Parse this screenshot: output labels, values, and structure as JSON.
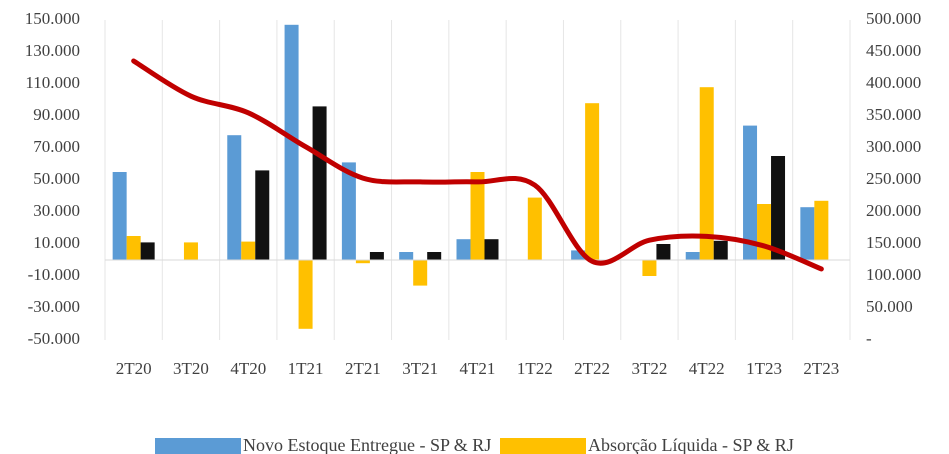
{
  "chart_data": {
    "type": "bar-line",
    "categories": [
      "2T20",
      "3T20",
      "4T20",
      "1T21",
      "2T21",
      "3T21",
      "4T21",
      "1T22",
      "2T22",
      "3T22",
      "4T22",
      "1T23",
      "2T23"
    ],
    "series": [
      {
        "name": "Novo Estoque Entregue - SP & RJ",
        "color": "#5b9bd5",
        "type": "bar",
        "values": [
          55000,
          null,
          78000,
          147000,
          61000,
          5000,
          13000,
          null,
          6000,
          null,
          5000,
          84000,
          33000
        ]
      },
      {
        "name": "Absorção Líquida - SP & RJ",
        "color": "#ffc000",
        "type": "bar",
        "values": [
          15000,
          11000,
          11500,
          -43000,
          -2000,
          -16000,
          55000,
          39000,
          98000,
          -10000,
          108000,
          35000,
          37000
        ]
      },
      {
        "color": "#111111",
        "type": "bar",
        "values": [
          11000,
          null,
          56000,
          96000,
          5000,
          5000,
          13000,
          null,
          null,
          10000,
          12000,
          65000,
          null
        ]
      },
      {
        "color": "#c00000",
        "type": "line",
        "axis": "y2",
        "values": [
          436000,
          381000,
          355000,
          302000,
          253000,
          247000,
          247000,
          242000,
          123000,
          156000,
          162000,
          147000,
          111000
        ]
      }
    ],
    "ylim": [
      -50000,
      150000
    ],
    "yticks": [
      {
        "value": -50000,
        "label": "-50.000"
      },
      {
        "value": -30000,
        "label": "-30.000"
      },
      {
        "value": -10000,
        "label": "-10.000"
      },
      {
        "value": 10000,
        "label": "10.000"
      },
      {
        "value": 30000,
        "label": "30.000"
      },
      {
        "value": 50000,
        "label": "50.000"
      },
      {
        "value": 70000,
        "label": "70.000"
      },
      {
        "value": 90000,
        "label": "90.000"
      },
      {
        "value": 110000,
        "label": "110.000"
      },
      {
        "value": 130000,
        "label": "130.000"
      },
      {
        "value": 150000,
        "label": "150.000"
      }
    ],
    "y2lim": [
      0,
      500000
    ],
    "y2ticks": [
      {
        "value": 0,
        "label": "-"
      },
      {
        "value": 50000,
        "label": "50.000"
      },
      {
        "value": 100000,
        "label": "100.000"
      },
      {
        "value": 150000,
        "label": "150.000"
      },
      {
        "value": 200000,
        "label": "200.000"
      },
      {
        "value": 250000,
        "label": "250.000"
      },
      {
        "value": 300000,
        "label": "300.000"
      },
      {
        "value": 350000,
        "label": "350.000"
      },
      {
        "value": 400000,
        "label": "400.000"
      },
      {
        "value": 450000,
        "label": "450.000"
      },
      {
        "value": 500000,
        "label": "500.000"
      }
    ],
    "legend": "bottom"
  }
}
